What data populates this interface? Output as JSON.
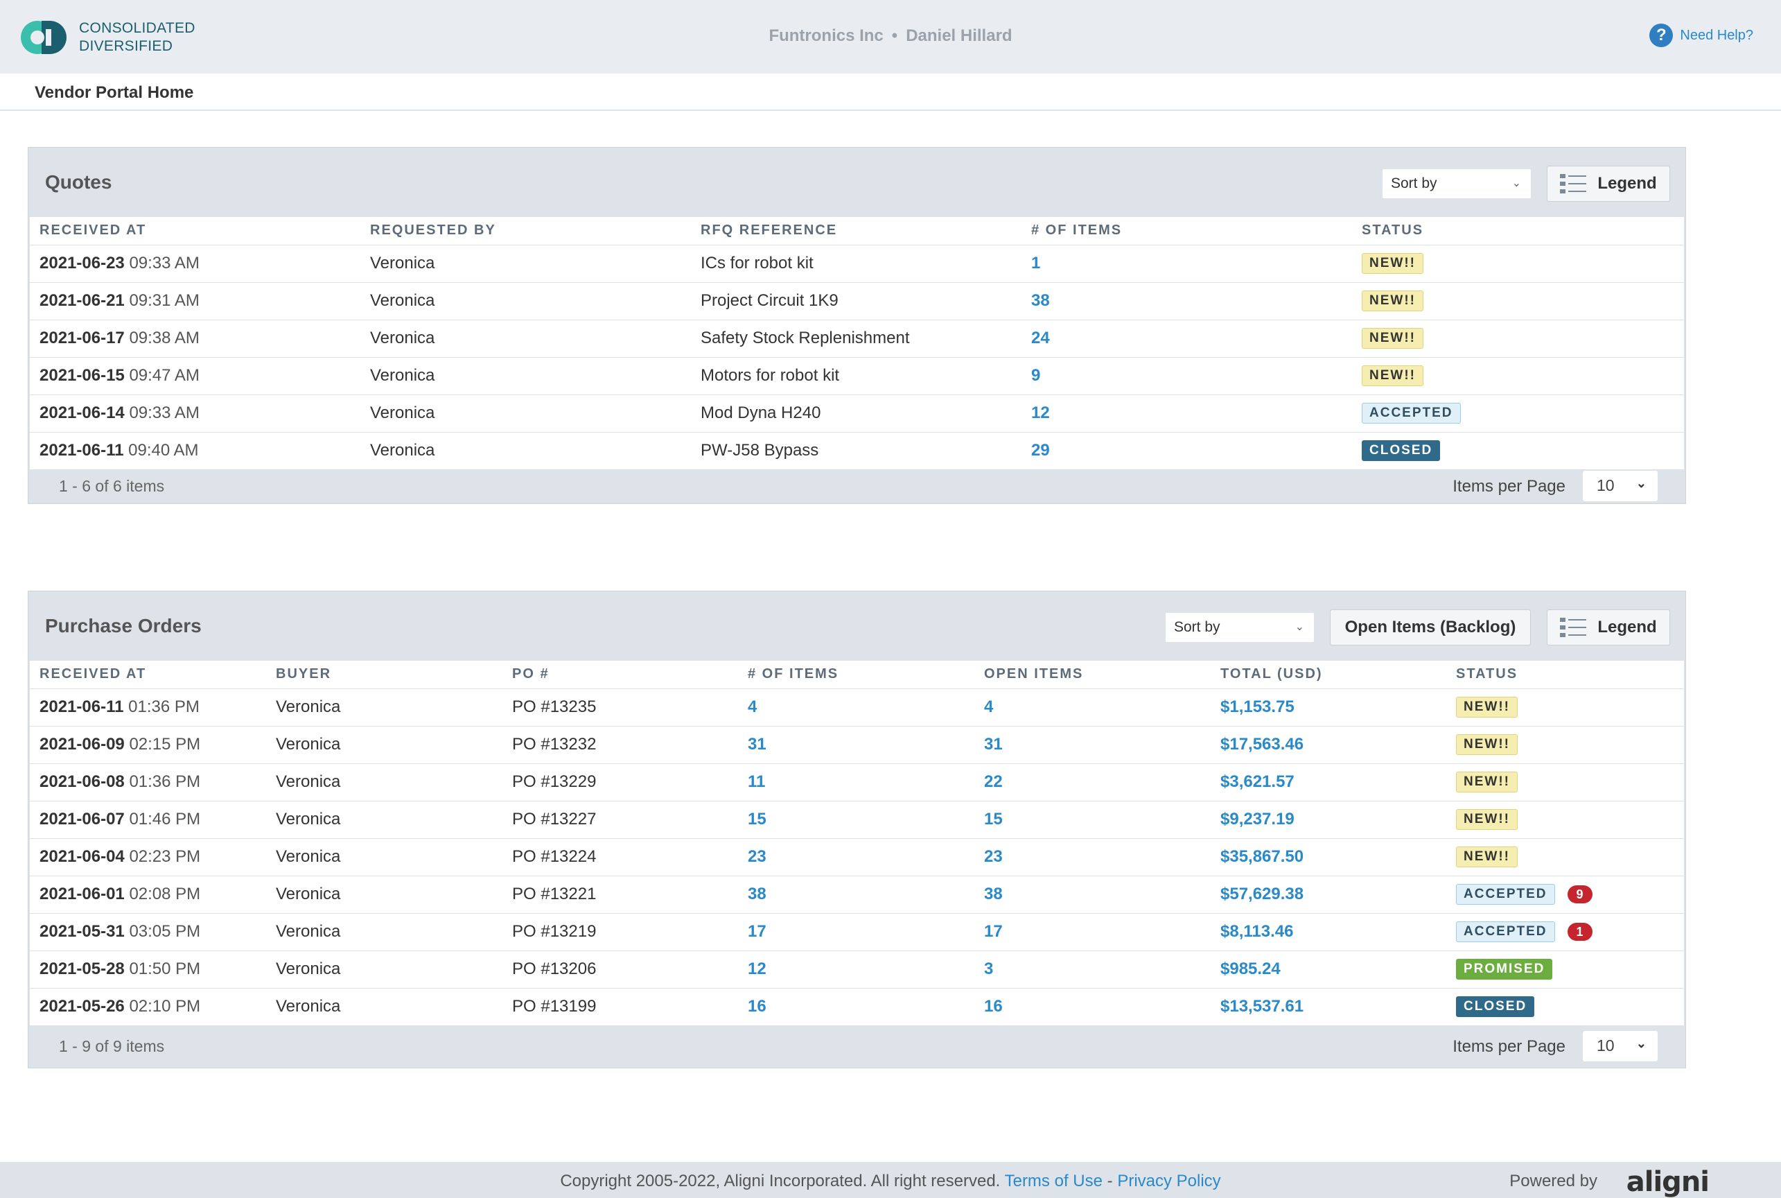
{
  "header": {
    "logo_line1": "CONSOLIDATED",
    "logo_line2": "DIVERSIFIED",
    "company": "Funtronics Inc",
    "separator": "•",
    "user": "Daniel Hillard",
    "help_label": "Need Help?"
  },
  "breadcrumb": {
    "title": "Vendor Portal Home"
  },
  "quotes": {
    "title": "Quotes",
    "sort_label": "Sort by",
    "legend_label": "Legend",
    "columns": [
      "RECEIVED AT",
      "REQUESTED BY",
      "RFQ REFERENCE",
      "# OF ITEMS",
      "STATUS"
    ],
    "rows": [
      {
        "date": "2021-06-23",
        "time": "09:33 AM",
        "by": "Veronica",
        "ref": "ICs for robot kit",
        "items": "1",
        "status": "NEW!!"
      },
      {
        "date": "2021-06-21",
        "time": "09:31 AM",
        "by": "Veronica",
        "ref": "Project Circuit 1K9",
        "items": "38",
        "status": "NEW!!"
      },
      {
        "date": "2021-06-17",
        "time": "09:38 AM",
        "by": "Veronica",
        "ref": "Safety Stock Replenishment",
        "items": "24",
        "status": "NEW!!"
      },
      {
        "date": "2021-06-15",
        "time": "09:47 AM",
        "by": "Veronica",
        "ref": "Motors for robot kit",
        "items": "9",
        "status": "NEW!!"
      },
      {
        "date": "2021-06-14",
        "time": "09:33 AM",
        "by": "Veronica",
        "ref": "Mod Dyna H240",
        "items": "12",
        "status": "ACCEPTED"
      },
      {
        "date": "2021-06-11",
        "time": "09:40 AM",
        "by": "Veronica",
        "ref": "PW-J58 Bypass",
        "items": "29",
        "status": "CLOSED"
      }
    ],
    "pager_info": "1 - 6 of 6 items",
    "ipp_label": "Items per Page",
    "ipp_value": "10"
  },
  "purchase_orders": {
    "title": "Purchase Orders",
    "sort_label": "Sort by",
    "backlog_label": "Open Items (Backlog)",
    "legend_label": "Legend",
    "columns": [
      "RECEIVED AT",
      "BUYER",
      "PO #",
      "# OF ITEMS",
      "OPEN ITEMS",
      "TOTAL (USD)",
      "STATUS"
    ],
    "rows": [
      {
        "date": "2021-06-11",
        "time": "01:36 PM",
        "buyer": "Veronica",
        "po": "PO #13235",
        "items": "4",
        "open": "4",
        "total": "$1,153.75",
        "status": "NEW!!",
        "count": ""
      },
      {
        "date": "2021-06-09",
        "time": "02:15 PM",
        "buyer": "Veronica",
        "po": "PO #13232",
        "items": "31",
        "open": "31",
        "total": "$17,563.46",
        "status": "NEW!!",
        "count": ""
      },
      {
        "date": "2021-06-08",
        "time": "01:36 PM",
        "buyer": "Veronica",
        "po": "PO #13229",
        "items": "11",
        "open": "22",
        "total": "$3,621.57",
        "status": "NEW!!",
        "count": ""
      },
      {
        "date": "2021-06-07",
        "time": "01:46 PM",
        "buyer": "Veronica",
        "po": "PO #13227",
        "items": "15",
        "open": "15",
        "total": "$9,237.19",
        "status": "NEW!!",
        "count": ""
      },
      {
        "date": "2021-06-04",
        "time": "02:23 PM",
        "buyer": "Veronica",
        "po": "PO #13224",
        "items": "23",
        "open": "23",
        "total": "$35,867.50",
        "status": "NEW!!",
        "count": ""
      },
      {
        "date": "2021-06-01",
        "time": "02:08 PM",
        "buyer": "Veronica",
        "po": "PO #13221",
        "items": "38",
        "open": "38",
        "total": "$57,629.38",
        "status": "ACCEPTED",
        "count": "9"
      },
      {
        "date": "2021-05-31",
        "time": "03:05 PM",
        "buyer": "Veronica",
        "po": "PO #13219",
        "items": "17",
        "open": "17",
        "total": "$8,113.46",
        "status": "ACCEPTED",
        "count": "1"
      },
      {
        "date": "2021-05-28",
        "time": "01:50 PM",
        "buyer": "Veronica",
        "po": "PO #13206",
        "items": "12",
        "open": "3",
        "total": "$985.24",
        "status": "PROMISED",
        "count": ""
      },
      {
        "date": "2021-05-26",
        "time": "02:10 PM",
        "buyer": "Veronica",
        "po": "PO #13199",
        "items": "16",
        "open": "16",
        "total": "$13,537.61",
        "status": "CLOSED",
        "count": ""
      }
    ],
    "pager_info": "1 - 9 of 9 items",
    "ipp_label": "Items per Page",
    "ipp_value": "10"
  },
  "footer": {
    "copyright": "Copyright 2005-2022, Aligni Incorporated. All right reserved.",
    "terms": "Terms of Use",
    "dash": "-",
    "privacy": "Privacy Policy",
    "powered_by": "Powered by",
    "brand": "aligni"
  },
  "colors": {
    "accent": "#2a8ac9",
    "new_badge": "#f6eeb0",
    "accepted_badge": "#dff0f8",
    "closed_badge": "#2f6a8a",
    "promised_badge": "#6cad3f",
    "alert_count": "#c5252c"
  },
  "icons": {
    "logo": "consolidated-diversified-logo",
    "help": "question-circle-icon",
    "legend": "list-icon",
    "dropdown": "chevron-down-icon"
  }
}
